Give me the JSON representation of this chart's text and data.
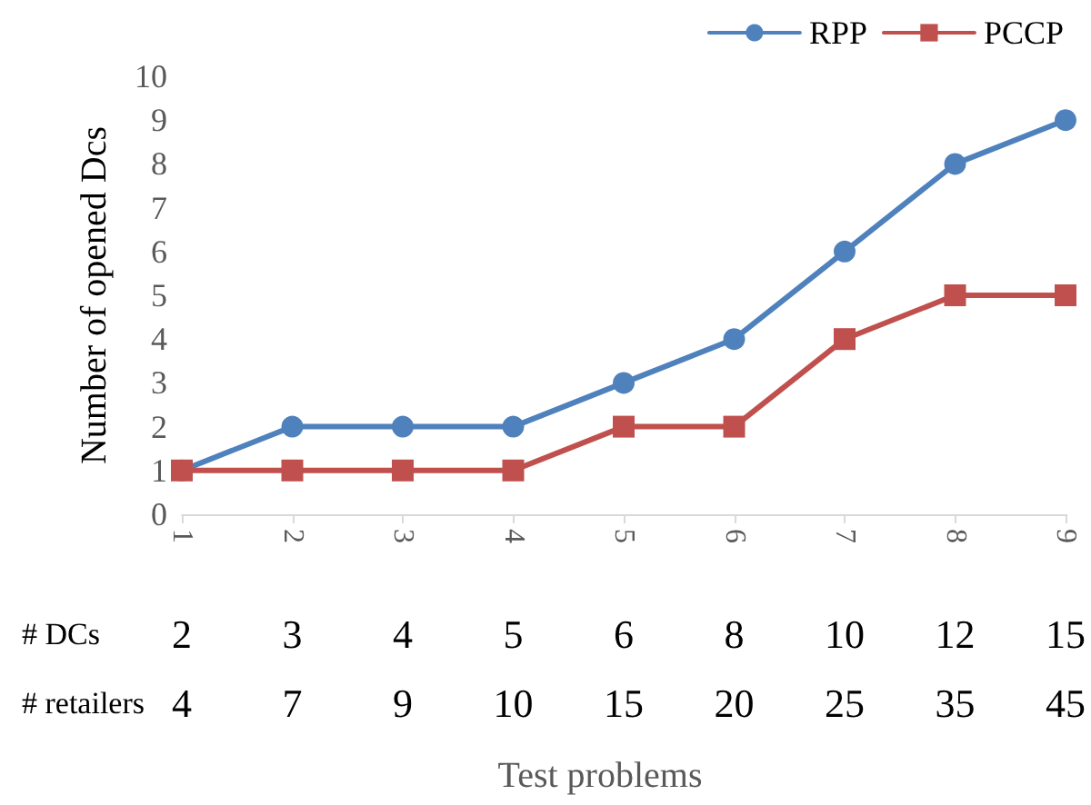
{
  "chart_data": {
    "type": "line",
    "ylabel": "Number of opened Dcs",
    "categories": [
      "1",
      "2",
      "3",
      "4",
      "5",
      "6",
      "7",
      "8",
      "9"
    ],
    "series": [
      {
        "name": "RPP",
        "color": "#4f81bd",
        "marker": "circle",
        "values": [
          1,
          2,
          2,
          2,
          3,
          4,
          6,
          8,
          9
        ]
      },
      {
        "name": "PCCP",
        "color": "#c0504d",
        "marker": "square",
        "values": [
          1,
          1,
          1,
          1,
          2,
          2,
          4,
          5,
          5
        ]
      }
    ],
    "ylim": [
      0,
      10
    ],
    "yticks": [
      0,
      1,
      2,
      3,
      4,
      5,
      6,
      7,
      8,
      9,
      10
    ],
    "grid": false,
    "legend": "top right",
    "line_style": "solid",
    "annotations": [
      "# DCs",
      "2",
      "3",
      "4",
      "5",
      "6",
      "8",
      "10",
      "12",
      "15",
      "# retailers",
      "4",
      "7",
      "9",
      "10",
      "15",
      "20",
      "25",
      "35",
      "45",
      "Test problems"
    ]
  }
}
